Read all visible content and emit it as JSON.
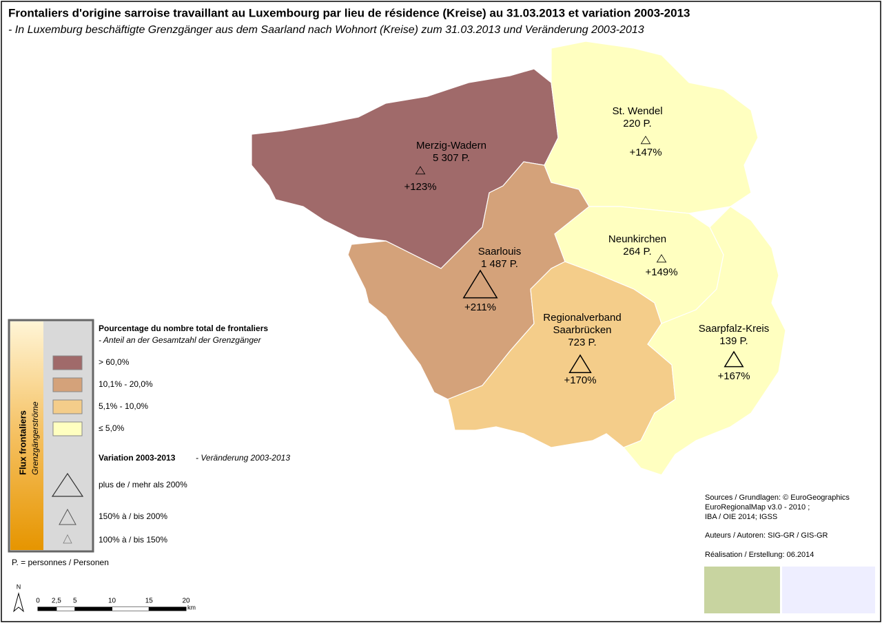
{
  "title": "Frontaliers d'origine sarroise travaillant au Luxembourg par lieu de résidence (Kreise) au 31.03.2013 et variation 2003-2013",
  "subtitle": "- In Luxemburg beschäftigte Grenzgänger aus dem Saarland nach Wohnort (Kreise) zum 31.03.2013 und Veränderung 2003-2013",
  "regions": [
    {
      "name_lines": [
        "Merzig-Wadern"
      ],
      "count": "5 307 P.",
      "variation": "+123%"
    },
    {
      "name_lines": [
        "Saarlouis"
      ],
      "count": "1 487 P.",
      "variation": "+211%"
    },
    {
      "name_lines": [
        "Regionalverband",
        "Saarbrücken"
      ],
      "count": "723 P.",
      "variation": "+170%"
    },
    {
      "name_lines": [
        "St. Wendel"
      ],
      "count": "220 P.",
      "variation": "+147%"
    },
    {
      "name_lines": [
        "Neunkirchen"
      ],
      "count": "264 P.",
      "variation": "+149%"
    },
    {
      "name_lines": [
        "Saarpfalz-Kreis"
      ],
      "count": "139 P.",
      "variation": "+167%"
    }
  ],
  "legend": {
    "side_title": "Flux frontaliers",
    "side_subtitle": "Grenzgängerströme",
    "share_title": "Pourcentage du nombre total de frontaliers",
    "share_subtitle": "- Anteil an der Gesamtzahl der Grenzgänger",
    "share_classes": [
      {
        "label": "> 60,0%",
        "color": "#a06a6a"
      },
      {
        "label": "10,1% - 20,0%",
        "color": "#d4a27a"
      },
      {
        "label": "5,1% - 10,0%",
        "color": "#f4cd8a"
      },
      {
        "label": "≤ 5,0%",
        "color": "#ffffc0"
      }
    ],
    "variation_title": "Variation 2003-2013",
    "variation_subtitle": " - Veränderung 2003-2013",
    "variation_classes": [
      "plus de / mehr als 200%",
      "150% à / bis 200%",
      "100% à / bis 150%"
    ],
    "abbreviation": "P. = personnes / Personen"
  },
  "north": "N",
  "scale": {
    "ticks": [
      0,
      {
        "value": 2.5,
        "label": "2,5"
      },
      5,
      10,
      15,
      20
    ],
    "unit": "km"
  },
  "sources": [
    "Sources / Grundlagen: © EuroGeographics",
    "EuroRegionalMap v3.0 - 2010 ;",
    "IBA / OIE 2014; IGSS",
    "Auteurs / Autoren: SIG-GR / GIS-GR",
    "Réalisation / Erstellung: 06.2014"
  ]
}
